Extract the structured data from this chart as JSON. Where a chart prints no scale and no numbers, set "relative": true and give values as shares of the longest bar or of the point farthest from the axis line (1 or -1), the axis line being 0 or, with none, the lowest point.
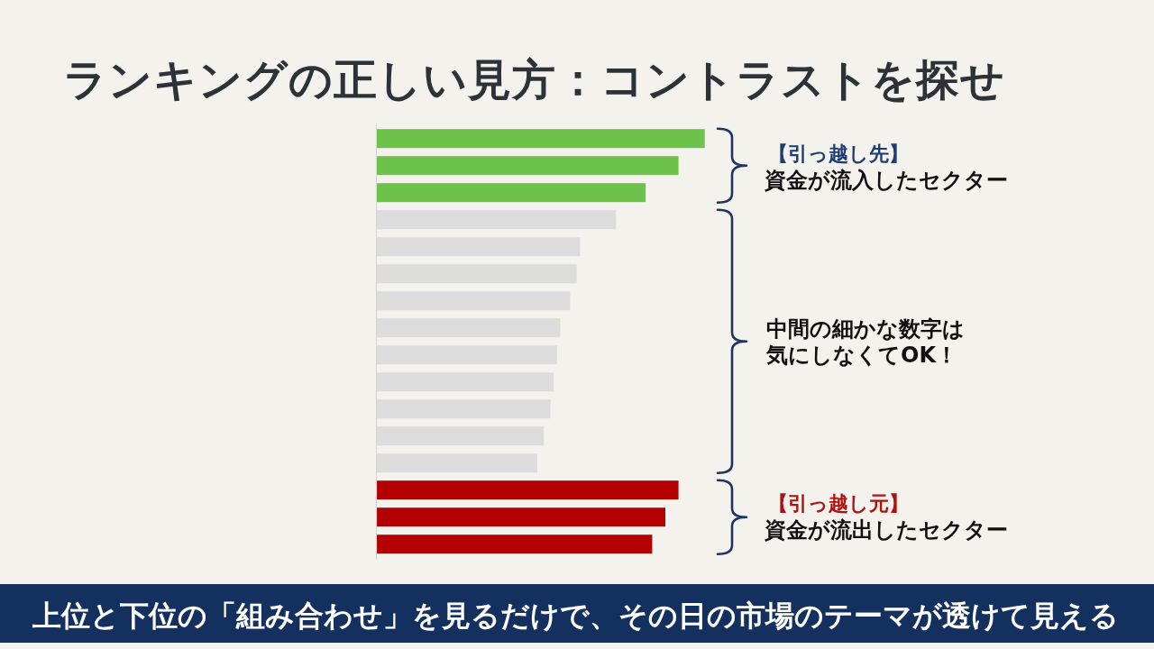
{
  "chart_data": {
    "type": "bar",
    "orientation": "horizontal",
    "relative": true,
    "title": "ランキングの正しい見方：コントラストを探せ",
    "categories": [
      null,
      null,
      null,
      null,
      null,
      null,
      null,
      null,
      null,
      null,
      null,
      null,
      null,
      null,
      null,
      null
    ],
    "values": [
      1,
      0.92,
      0.82,
      0.73,
      0.62,
      0.61,
      0.59,
      0.56,
      0.55,
      0.54,
      0.53,
      0.51,
      0.49,
      0.92,
      0.88,
      0.84
    ],
    "colors": [
      "#6cc24a",
      "#6cc24a",
      "#6cc24a",
      "#dcdcdc",
      "#dcdcdc",
      "#dcdcdc",
      "#dcdcdc",
      "#dcdcdc",
      "#dcdcdc",
      "#dcdcdc",
      "#dcdcdc",
      "#dcdcdc",
      "#dcdcdc",
      "#b30000",
      "#b30000",
      "#b30000"
    ],
    "annotations": [
      "【引っ越し先】",
      "資金が流入したセクター",
      "中間の細かな数字は",
      "気にしなくてOK！",
      "【引っ越し元】",
      "資金が流出したセクター",
      "上位と下位の「組み合わせ」を見るだけで、その日の市場のテーマが透けて見える"
    ]
  }
}
